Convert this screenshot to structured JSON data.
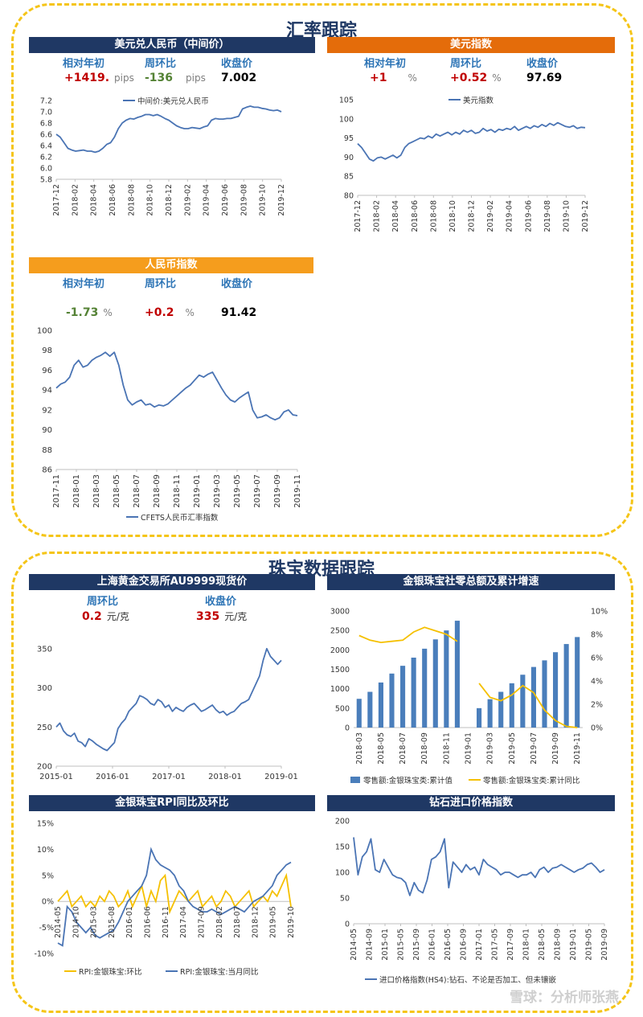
{
  "sections": {
    "fx_title": "汇率跟踪",
    "jewel_title": "珠宝数据跟踪"
  },
  "panels": {
    "usdcny": {
      "title": "美元兑人民币（中间价）",
      "labels": [
        "相对年初",
        "周环比",
        "收盘价"
      ],
      "ytd": "+1419.",
      "ytd_unit": "pips",
      "wow": "-136",
      "wow_unit": "pips",
      "close": "7.002"
    },
    "dxy": {
      "title": "美元指数",
      "labels": [
        "相对年初",
        "周环比",
        "收盘价"
      ],
      "ytd": "+1",
      "ytd_unit": "%",
      "wow": "+0.52",
      "wow_unit": "%",
      "close": "97.69"
    },
    "cny": {
      "title": "人民币指数",
      "labels": [
        "相对年初",
        "周环比",
        "收盘价"
      ],
      "ytd": "-1.73",
      "ytd_unit": "%",
      "wow": "+0.2",
      "wow_unit": "%",
      "close": "91.42"
    },
    "gold": {
      "title": "上海黄金交易所AU9999现货价",
      "labels": [
        "周环比",
        "收盘价"
      ],
      "wow": "0.2",
      "wow_unit": "元/克",
      "close": "335",
      "close_unit": "元/克"
    },
    "retail": {
      "title": "金银珠宝社零总额及累计增速"
    },
    "rpi": {
      "title": "金银珠宝RPI同比及环比"
    },
    "diamond": {
      "title": "钻石进口价格指数"
    }
  },
  "colors": {
    "navy": "#1f3864",
    "orange": "#e46c0a",
    "amber": "#f59d1d",
    "line_blue": "#4a74b4",
    "bar_blue": "#4a7ebb",
    "line_yellow": "#f5c000",
    "frame": "#f5c518"
  },
  "watermark": "雪球：分析师张燕",
  "chart_data": [
    {
      "id": "usdcny",
      "type": "line",
      "series": [
        {
          "name": "中间价:美元兑人民币",
          "values": [
            6.6,
            6.55,
            6.45,
            6.35,
            6.32,
            6.3,
            6.31,
            6.32,
            6.3,
            6.3,
            6.28,
            6.3,
            6.35,
            6.42,
            6.45,
            6.55,
            6.7,
            6.8,
            6.85,
            6.88,
            6.87,
            6.9,
            6.92,
            6.95,
            6.95,
            6.93,
            6.95,
            6.92,
            6.88,
            6.85,
            6.8,
            6.75,
            6.72,
            6.7,
            6.7,
            6.72,
            6.71,
            6.7,
            6.73,
            6.75,
            6.85,
            6.88,
            6.87,
            6.87,
            6.88,
            6.88,
            6.9,
            6.92,
            7.05,
            7.08,
            7.1,
            7.08,
            7.08,
            7.06,
            7.05,
            7.03,
            7.02,
            7.03,
            7.0
          ]
        }
      ],
      "x_ticks": [
        "2017-12",
        "2018-02",
        "2018-04",
        "2018-06",
        "2018-08",
        "2018-10",
        "2018-12",
        "2019-02",
        "2019-04",
        "2019-06",
        "2019-08",
        "2019-10",
        "2019-12"
      ],
      "y_ticks": [
        "5.8",
        "6.0",
        "6.2",
        "6.4",
        "6.6",
        "6.8",
        "7.0",
        "7.2"
      ],
      "ylim": [
        5.8,
        7.2
      ]
    },
    {
      "id": "dxy",
      "type": "line",
      "series": [
        {
          "name": "美元指数",
          "values": [
            93.5,
            92.5,
            91,
            89.5,
            89,
            89.8,
            90,
            89.5,
            90,
            90.5,
            89.8,
            90.5,
            92.5,
            93.5,
            94,
            94.5,
            95,
            94.8,
            95.5,
            95,
            96,
            95.5,
            96,
            96.5,
            95.8,
            96.5,
            96,
            97,
            96.5,
            97,
            96.2,
            96.5,
            97.5,
            96.8,
            97.2,
            96.5,
            97.3,
            97,
            97.5,
            97.2,
            98,
            97,
            97.5,
            98,
            97.5,
            98.2,
            97.8,
            98.5,
            98,
            98.8,
            98.3,
            99,
            98.5,
            98,
            97.8,
            98.2,
            97.5,
            97.8,
            97.69
          ]
        }
      ],
      "x_ticks": [
        "2017-12",
        "2018-02",
        "2018-04",
        "2018-06",
        "2018-08",
        "2018-10",
        "2018-12",
        "2019-02",
        "2019-04",
        "2019-06",
        "2019-08",
        "2019-10",
        "2019-12"
      ],
      "y_ticks": [
        "80",
        "85",
        "90",
        "95",
        "100",
        "105"
      ],
      "ylim": [
        80,
        105
      ]
    },
    {
      "id": "cny",
      "type": "line",
      "series": [
        {
          "name": "CFETS人民币汇率指数",
          "values": [
            94.2,
            94.6,
            94.8,
            95.3,
            96.5,
            97,
            96.3,
            96.5,
            97,
            97.3,
            97.5,
            97.8,
            97.4,
            97.8,
            96.5,
            94.5,
            93,
            92.5,
            92.8,
            93,
            92.5,
            92.6,
            92.3,
            92.5,
            92.4,
            92.6,
            93,
            93.4,
            93.8,
            94.2,
            94.5,
            95,
            95.5,
            95.3,
            95.6,
            95.8,
            95,
            94.2,
            93.5,
            93,
            92.8,
            93.2,
            93.5,
            93.8,
            92,
            91.2,
            91.3,
            91.5,
            91.2,
            91,
            91.2,
            91.8,
            92,
            91.5,
            91.42
          ]
        }
      ],
      "x_ticks": [
        "2017-11",
        "2018-01",
        "2018-03",
        "2018-05",
        "2018-07",
        "2018-09",
        "2018-11",
        "2019-01",
        "2019-03",
        "2019-05",
        "2019-07",
        "2019-09",
        "2019-11"
      ],
      "y_ticks": [
        "86",
        "88",
        "90",
        "92",
        "94",
        "96",
        "98",
        "100"
      ],
      "ylim": [
        86,
        100
      ]
    },
    {
      "id": "gold",
      "type": "line",
      "series": [
        {
          "name": "AU9999",
          "values": [
            250,
            255,
            245,
            240,
            238,
            242,
            232,
            230,
            225,
            235,
            232,
            228,
            225,
            222,
            220,
            225,
            230,
            248,
            255,
            260,
            270,
            275,
            280,
            290,
            288,
            285,
            280,
            278,
            285,
            282,
            275,
            278,
            270,
            275,
            272,
            270,
            275,
            278,
            280,
            275,
            270,
            272,
            275,
            278,
            272,
            268,
            270,
            265,
            268,
            270,
            275,
            280,
            282,
            285,
            295,
            305,
            315,
            335,
            350,
            340,
            335,
            330,
            335
          ]
        }
      ],
      "x_ticks": [
        "2015-01",
        "2016-01",
        "2017-01",
        "2018-01",
        "2019-01"
      ],
      "y_ticks": [
        "200",
        "250",
        "300",
        "350"
      ],
      "ylim": [
        200,
        360
      ]
    },
    {
      "id": "retail",
      "type": "bar",
      "categories": [
        "2018-03",
        "2018-04",
        "2018-05",
        "2018-06",
        "2018-07",
        "2018-08",
        "2018-09",
        "2018-10",
        "2018-11",
        "2018-12",
        "2019-01",
        "2019-02",
        "2019-03",
        "2019-04",
        "2019-05",
        "2019-06",
        "2019-07",
        "2019-08",
        "2019-09",
        "2019-10",
        "2019-11"
      ],
      "x_ticks": [
        "2018-03",
        "2018-05",
        "2018-07",
        "2018-09",
        "2018-11",
        "2019-01",
        "2019-03",
        "2019-05",
        "2019-07",
        "2019-09",
        "2019-11"
      ],
      "series": [
        {
          "name": "零售额:金银珠宝类:累计值",
          "values": [
            740,
            920,
            1160,
            1390,
            1590,
            1800,
            2030,
            2270,
            2500,
            2750,
            null,
            500,
            730,
            920,
            1140,
            1360,
            1560,
            1730,
            1940,
            2150,
            2330
          ]
        },
        {
          "name": "零售额:金银珠宝类:累计同比",
          "axis": "right",
          "values": [
            7.9,
            7.5,
            7.3,
            7.4,
            7.5,
            8.2,
            8.6,
            8.3,
            8.0,
            7.4,
            null,
            3.8,
            2.6,
            2.3,
            2.8,
            3.6,
            3.0,
            1.5,
            0.6,
            0.1,
            0.0
          ]
        }
      ],
      "y_ticks": [
        "0",
        "500",
        "1000",
        "1500",
        "2000",
        "2500",
        "3000"
      ],
      "y2_ticks": [
        "0%",
        "2%",
        "4%",
        "6%",
        "8%",
        "10%"
      ],
      "ylim": [
        0,
        3000
      ],
      "y2lim": [
        0,
        10
      ]
    },
    {
      "id": "rpi",
      "type": "line",
      "series": [
        {
          "name": "RPI:金银珠宝:环比",
          "values": [
            0,
            1,
            2,
            -1,
            0,
            1,
            -1,
            0,
            -1,
            1,
            0,
            2,
            1,
            -1,
            0,
            2,
            -1,
            1,
            3,
            -1,
            2,
            0,
            4,
            5,
            -2,
            0,
            2,
            1,
            0,
            1,
            2,
            -1,
            0,
            1,
            -1,
            0,
            2,
            1,
            -1,
            0,
            1,
            2,
            -1,
            0,
            1,
            0,
            2,
            1,
            3,
            5,
            -1
          ]
        },
        {
          "name": "RPI:金银珠宝:当月同比",
          "values": [
            -8,
            -8.5,
            -1,
            -2,
            -4,
            -5,
            -6,
            -5,
            -6.5,
            -7,
            -6.5,
            -6,
            -5.5,
            -4,
            -2,
            0,
            1,
            2,
            3,
            5,
            10,
            8,
            7,
            6.5,
            6,
            5,
            3,
            2,
            0,
            -1,
            -1.5,
            -2,
            -2,
            -1.5,
            -2,
            -2.5,
            -2,
            -1.5,
            -1,
            -1.5,
            -2,
            -1,
            0,
            0.5,
            1,
            2,
            3,
            5,
            6,
            7,
            7.5
          ]
        }
      ],
      "x_ticks": [
        "2014-05",
        "2014-10",
        "2015-03",
        "2015-08",
        "2016-01",
        "2016-06",
        "2016-11",
        "2017-04",
        "2017-09",
        "2018-02",
        "2018-07",
        "2018-12",
        "2019-05",
        "2019-10"
      ],
      "y_ticks": [
        "-10%",
        "-5%",
        "0%",
        "5%",
        "10%",
        "15%"
      ],
      "ylim": [
        -10,
        15
      ]
    },
    {
      "id": "diamond",
      "type": "line",
      "series": [
        {
          "name": "进口价格指数(HS4):钻石、不论是否加工、但未镶嵌",
          "values": [
            168,
            95,
            130,
            140,
            165,
            105,
            100,
            125,
            110,
            95,
            90,
            88,
            80,
            55,
            80,
            65,
            60,
            85,
            125,
            130,
            140,
            165,
            70,
            120,
            110,
            100,
            115,
            105,
            110,
            95,
            125,
            115,
            110,
            105,
            95,
            100,
            100,
            95,
            90,
            95,
            95,
            100,
            90,
            105,
            110,
            100,
            108,
            110,
            115,
            110,
            105,
            100,
            105,
            108,
            115,
            118,
            110,
            100,
            105
          ]
        }
      ],
      "x_ticks": [
        "2014-05",
        "2014-09",
        "2015-01",
        "2015-05",
        "2015-09",
        "2016-01",
        "2016-05",
        "2016-09",
        "2017-01",
        "2017-05",
        "2017-09",
        "2018-01",
        "2018-05",
        "2018-09",
        "2019-01",
        "2019-05",
        "2019-09"
      ],
      "y_ticks": [
        "0",
        "50",
        "100",
        "150",
        "200"
      ],
      "ylim": [
        0,
        200
      ]
    }
  ]
}
